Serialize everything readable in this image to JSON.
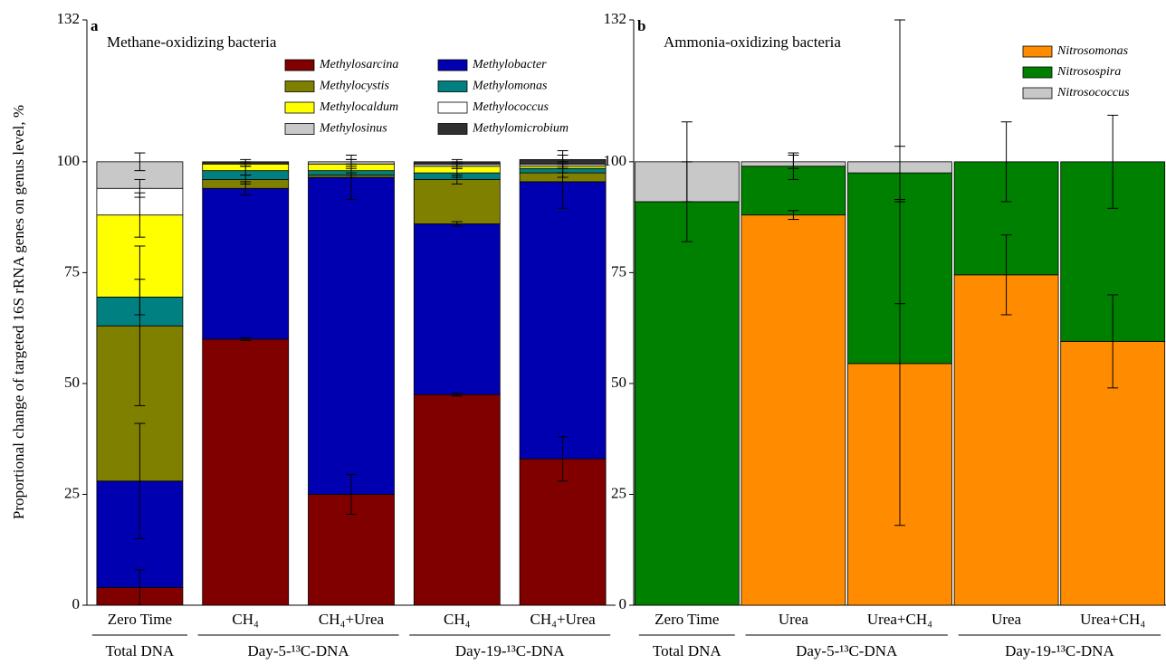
{
  "chart_data": [
    {
      "type": "bar",
      "stacked": true,
      "panel": "a",
      "title": "Methane-oxidizing bacteria",
      "ylabel": "Proportional change of targeted 16S rRNA genes on genus level, %",
      "groups": [
        {
          "label": "Total DNA",
          "categories": [
            "Zero Time"
          ]
        },
        {
          "label": "Day-5-¹³C-DNA",
          "categories": [
            "CH₄",
            "CH₄+Urea"
          ]
        },
        {
          "label": "Day-19-¹³C-DNA",
          "categories": [
            "CH₄",
            "CH₄+Urea"
          ]
        }
      ],
      "ylim": [
        0,
        132
      ],
      "yticks": [
        0,
        25,
        50,
        75,
        100,
        132
      ],
      "series": [
        {
          "name": "Methylosarcina",
          "color": "#800000",
          "values": [
            4,
            60,
            25,
            47.5,
            33
          ],
          "errors": [
            4,
            0.3,
            4.5,
            0.3,
            5
          ]
        },
        {
          "name": "Methylobacter",
          "color": "#0000b0",
          "values": [
            24,
            34,
            71.5,
            38.5,
            62.5
          ],
          "errors": [
            13,
            1.5,
            5,
            0.5,
            6
          ]
        },
        {
          "name": "Methylocystis",
          "color": "#808000",
          "values": [
            35,
            2,
            0.5,
            10,
            2
          ],
          "errors": [
            18,
            1,
            0.5,
            1,
            1
          ]
        },
        {
          "name": "Methylomonas",
          "color": "#008080",
          "values": [
            6.5,
            2,
            1,
            1.5,
            1
          ],
          "errors": [
            4,
            1,
            1,
            1,
            1
          ]
        },
        {
          "name": "Methylocaldum",
          "color": "#ffff00",
          "values": [
            18.5,
            1.5,
            1.5,
            1.5,
            0.5
          ],
          "errors": [
            5,
            0.5,
            1,
            0.5,
            0.5
          ]
        },
        {
          "name": "Methylococcus",
          "color": "#ffffff",
          "values": [
            6,
            0,
            0,
            0,
            0
          ],
          "errors": [
            2,
            0,
            0,
            0,
            0
          ]
        },
        {
          "name": "Methylosinus",
          "color": "#c8c8c8",
          "values": [
            6,
            0,
            0.5,
            0.5,
            0.5
          ],
          "errors": [
            2,
            0,
            0.5,
            0.5,
            0.5
          ]
        },
        {
          "name": "Methylomicrobium",
          "color": "#303030",
          "values": [
            0,
            0.5,
            0,
            0.5,
            1
          ],
          "errors": [
            0,
            0.5,
            1.5,
            0.5,
            2
          ]
        }
      ]
    },
    {
      "type": "bar",
      "stacked": true,
      "panel": "b",
      "title": "Ammonia-oxidizing bacteria",
      "groups": [
        {
          "label": "Total DNA",
          "categories": [
            "Zero Time"
          ]
        },
        {
          "label": "Day-5-¹³C-DNA",
          "categories": [
            "Urea",
            "Urea+CH₄"
          ]
        },
        {
          "label": "Day-19-¹³C-DNA",
          "categories": [
            "Urea",
            "Urea+CH₄"
          ]
        }
      ],
      "ylim": [
        0,
        132
      ],
      "yticks": [
        0,
        25,
        50,
        75,
        100,
        132
      ],
      "series": [
        {
          "name": "Nitrosomonas",
          "color": "#ff8c00",
          "values": [
            0,
            88,
            54.5,
            74.5,
            59.5
          ],
          "errors": [
            0,
            1,
            36.5,
            9,
            10.5
          ]
        },
        {
          "name": "Nitrosospira",
          "color": "#008000",
          "values": [
            91,
            11,
            43,
            25.5,
            40.5
          ],
          "errors": [
            9,
            3,
            6,
            9,
            10.5
          ]
        },
        {
          "name": "Nitrosococcus",
          "color": "#c8c8c8",
          "values": [
            9,
            1,
            2.5,
            0,
            0
          ],
          "errors": [
            9,
            1.5,
            32,
            0,
            0
          ]
        }
      ]
    }
  ]
}
